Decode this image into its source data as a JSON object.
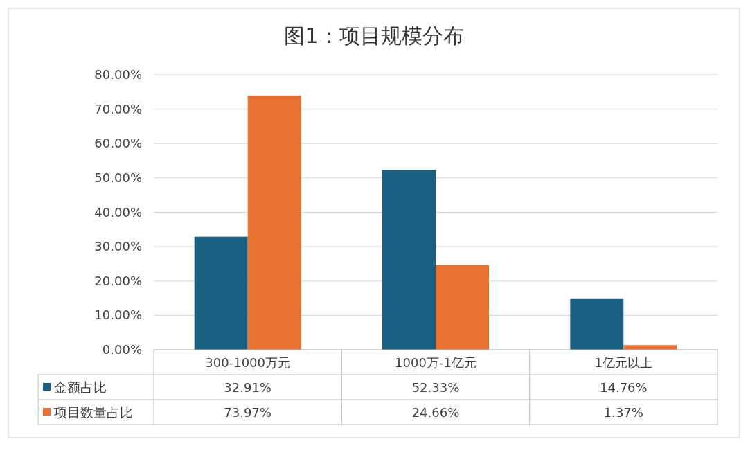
{
  "chart_data": {
    "type": "bar",
    "title": "图1：项目规模分布",
    "categories": [
      "300-1000万元",
      "1000万-1亿元",
      "1亿元以上"
    ],
    "series": [
      {
        "name": "金额占比",
        "color": "#1a5f80",
        "values": [
          32.91,
          52.33,
          14.76
        ],
        "value_labels": [
          "32.91%",
          "52.33%",
          "14.76%"
        ]
      },
      {
        "name": "项目数量占比",
        "color": "#e97132",
        "values": [
          73.97,
          24.66,
          1.37
        ],
        "value_labels": [
          "73.97%",
          "24.66%",
          "1.37%"
        ]
      }
    ],
    "ylim": [
      0,
      80
    ],
    "yticks": [
      {
        "value": 0,
        "label": "0.00%"
      },
      {
        "value": 10,
        "label": "10.00%"
      },
      {
        "value": 20,
        "label": "20.00%"
      },
      {
        "value": 30,
        "label": "30.00%"
      },
      {
        "value": 40,
        "label": "40.00%"
      },
      {
        "value": 50,
        "label": "50.00%"
      },
      {
        "value": 60,
        "label": "60.00%"
      },
      {
        "value": 70,
        "label": "70.00%"
      },
      {
        "value": 80,
        "label": "80.00%"
      }
    ],
    "grid": "y",
    "legend": "bottom"
  }
}
